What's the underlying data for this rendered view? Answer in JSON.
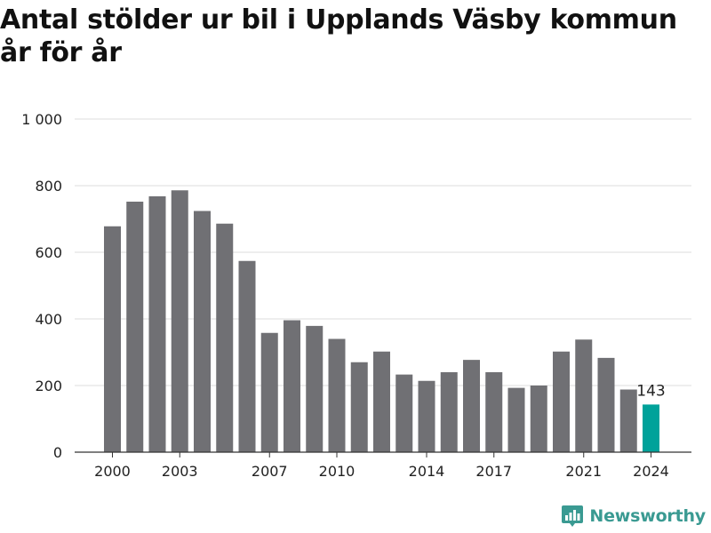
{
  "colors": {
    "bar": "#707074",
    "highlight": "#00a29a",
    "grid": "#dcdcdc",
    "axis": "#333333",
    "brand": "#3a9a92"
  },
  "brand": {
    "name": "Newsworthy",
    "icon": "bar-chart-icon"
  },
  "chart_data": {
    "type": "bar",
    "title": "Antal stölder ur bil i Upplands Väsby kommun år för år",
    "xlabel": "",
    "ylabel": "",
    "ylim": [
      0,
      1000
    ],
    "yticks": [
      0,
      200,
      400,
      600,
      800,
      1000
    ],
    "ytick_labels": [
      "0",
      "200",
      "400",
      "600",
      "800",
      "1 000"
    ],
    "xtick_labels": [
      "2000",
      "2003",
      "2007",
      "2010",
      "2014",
      "2017",
      "2021",
      "2024"
    ],
    "grid": true,
    "categories": [
      "2000",
      "2001",
      "2002",
      "2003",
      "2004",
      "2005",
      "2006",
      "2007",
      "2008",
      "2009",
      "2010",
      "2011",
      "2012",
      "2013",
      "2014",
      "2015",
      "2016",
      "2017",
      "2018",
      "2019",
      "2020",
      "2021",
      "2022",
      "2023",
      "2024"
    ],
    "values": [
      678,
      752,
      768,
      786,
      724,
      686,
      574,
      358,
      396,
      379,
      340,
      270,
      302,
      233,
      214,
      240,
      277,
      240,
      193,
      200,
      302,
      338,
      283,
      188,
      143
    ],
    "highlight": {
      "category": "2024",
      "value": 143,
      "label": "143"
    }
  }
}
